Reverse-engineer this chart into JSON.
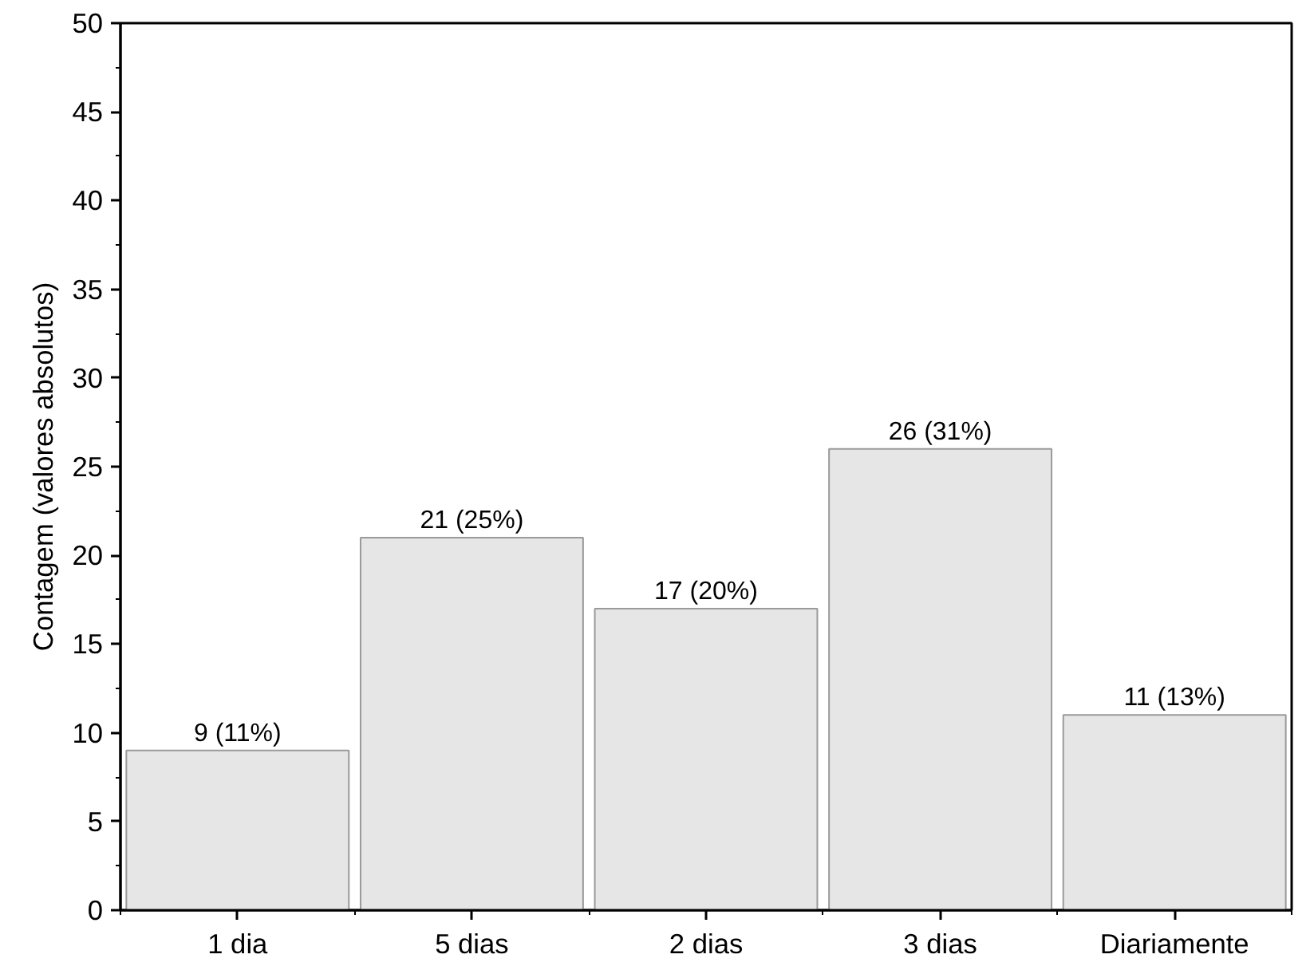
{
  "chart_data": {
    "type": "bar",
    "ylabel": "Contagem (valores absolutos)",
    "categories": [
      "1 dia",
      "5 dias",
      "2 dias",
      "3 dias",
      "Diariamente"
    ],
    "values": [
      9,
      21,
      17,
      26,
      11
    ],
    "value_labels": [
      "9 (11%)",
      "21 (25%)",
      "17 (20%)",
      "26 (31%)",
      "11 (13%)"
    ],
    "color": "#e6e6e6",
    "ylim": [
      0,
      50
    ],
    "yticks": [
      0,
      5,
      10,
      15,
      20,
      25,
      30,
      35,
      40,
      45,
      50
    ],
    "grid": false
  }
}
